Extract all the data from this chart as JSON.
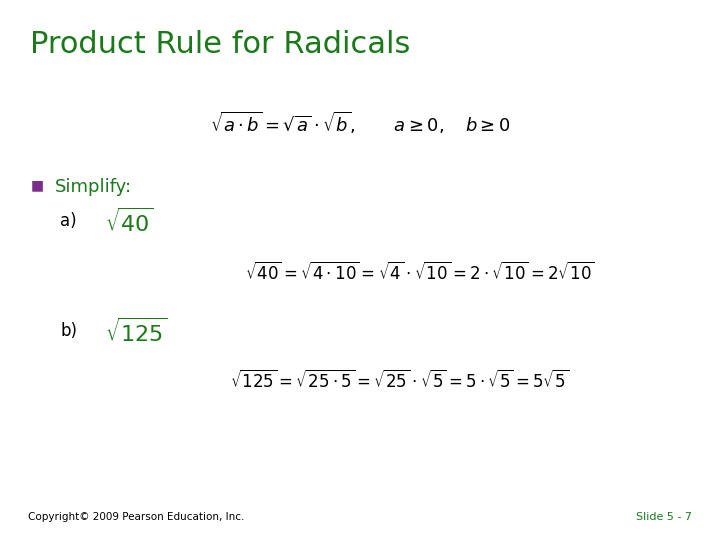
{
  "title": "Product Rule for Radicals",
  "title_color": "#1A7A1A",
  "title_fontsize": 22,
  "background_color": "#FFFFFF",
  "text_color": "#000000",
  "green_color": "#1A7A1A",
  "purple_color": "#7B2D8B",
  "formula_main": "$\\sqrt{a \\cdot b} = \\sqrt{a} \\cdot \\sqrt{b}, \\qquad a \\geq 0, \\quad b \\geq 0$",
  "simplify_label": "Simplify:",
  "a_label": "a)",
  "a_expr": "$\\sqrt{40}$",
  "a_work": "$\\sqrt{40} = \\sqrt{4 \\cdot 10} = \\sqrt{4} \\cdot \\sqrt{10} = 2 \\cdot \\sqrt{10} = 2\\sqrt{10}$",
  "b_label": "b)",
  "b_expr": "$\\sqrt{125}$",
  "b_work": "$\\sqrt{125} = \\sqrt{25 \\cdot 5} = \\sqrt{25} \\cdot \\sqrt{5} = 5 \\cdot \\sqrt{5} = 5\\sqrt{5}$",
  "copyright": "Copyright© 2009 Pearson Education, Inc.",
  "slide_num": "Slide 5 - 7",
  "copyright_fontsize": 7.5,
  "slide_num_fontsize": 8
}
